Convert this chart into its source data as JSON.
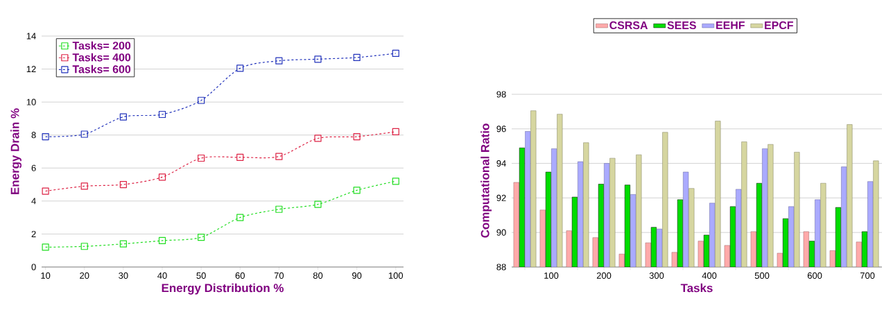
{
  "chart_data": [
    {
      "type": "line",
      "xlabel": "Energy Distribution %",
      "ylabel": "Energy Drain %",
      "x": [
        10,
        20,
        30,
        40,
        50,
        60,
        70,
        80,
        90,
        100
      ],
      "xlim": [
        9,
        102
      ],
      "ylim": [
        0,
        14
      ],
      "xticks": [
        10,
        20,
        30,
        40,
        50,
        60,
        70,
        80,
        90,
        100
      ],
      "yticks": [
        0,
        2,
        4,
        6,
        8,
        10,
        12,
        14
      ],
      "grid": "y",
      "legend": "top left",
      "marker": "square",
      "line_style": "dashed",
      "series": [
        {
          "name": "Tasks= 200",
          "color": "#22dd22",
          "values": [
            1.2,
            1.25,
            1.4,
            1.6,
            1.8,
            3.0,
            3.5,
            3.8,
            4.65,
            5.2
          ]
        },
        {
          "name": "Tasks= 400",
          "color": "#dd2244",
          "values": [
            4.6,
            4.9,
            5.0,
            5.45,
            6.6,
            6.65,
            6.7,
            7.8,
            7.9,
            8.2
          ]
        },
        {
          "name": "Tasks= 600",
          "color": "#2233bb",
          "values": [
            7.9,
            8.05,
            9.1,
            9.25,
            10.1,
            12.05,
            12.5,
            12.6,
            12.7,
            12.95
          ]
        }
      ]
    },
    {
      "type": "bar",
      "xlabel": "Tasks",
      "ylabel": "Computational Ratio",
      "categories": [
        null,
        "100",
        null,
        "200",
        null,
        "300",
        null,
        "400",
        null,
        "500",
        null,
        "600",
        null,
        "700"
      ],
      "ylim": [
        88,
        98
      ],
      "yticks": [
        88,
        90,
        92,
        94,
        96,
        98
      ],
      "grid": "y",
      "legend": "top",
      "series": [
        {
          "name": "CSRSA",
          "color": "#ffaaaa",
          "values": [
            92.9,
            91.3,
            90.1,
            89.7,
            88.75,
            89.4,
            88.85,
            89.5,
            89.25,
            90.05,
            88.8,
            90.05,
            88.95,
            89.45
          ]
        },
        {
          "name": "SEES",
          "color": "#00dd00",
          "values": [
            94.9,
            93.5,
            92.05,
            92.8,
            92.75,
            90.3,
            91.9,
            89.85,
            91.5,
            92.85,
            90.8,
            89.5,
            91.45,
            90.05
          ]
        },
        {
          "name": "EEHF",
          "color": "#aaaaff",
          "values": [
            95.85,
            94.85,
            94.1,
            94.0,
            92.2,
            90.2,
            93.5,
            91.7,
            92.5,
            94.85,
            91.5,
            91.9,
            93.8,
            92.95
          ]
        },
        {
          "name": "EPCF",
          "color": "#d6d6a0",
          "values": [
            97.05,
            96.85,
            95.2,
            94.3,
            94.5,
            95.8,
            92.55,
            96.45,
            95.25,
            95.1,
            94.65,
            92.85,
            96.25,
            94.15
          ]
        }
      ]
    }
  ]
}
